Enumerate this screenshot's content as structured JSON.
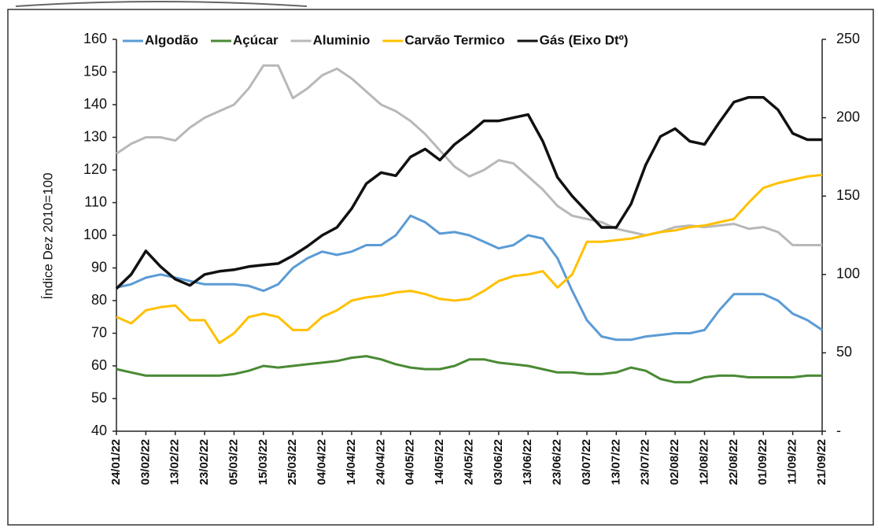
{
  "chart_data": {
    "type": "line",
    "y_label": "Índice Dez 2010=100",
    "categories": [
      "24/01/22",
      null,
      "03/02/22",
      null,
      "13/02/22",
      null,
      "23/02/22",
      null,
      "05/03/22",
      null,
      "15/03/22",
      null,
      "25/03/22",
      null,
      "04/04/22",
      null,
      "14/04/22",
      null,
      "24/04/22",
      null,
      "04/05/22",
      null,
      "14/05/22",
      null,
      "24/05/22",
      null,
      "03/06/22",
      null,
      "13/06/22",
      null,
      "23/06/22",
      null,
      "03/07/22",
      null,
      "13/07/22",
      null,
      "23/07/22",
      null,
      "02/08/22",
      null,
      "12/08/22",
      null,
      "22/08/22",
      null,
      "01/09/22",
      null,
      "11/09/22",
      null,
      "21/09/22"
    ],
    "ylim": [
      40,
      160
    ],
    "yticks": [
      40,
      50,
      60,
      70,
      80,
      90,
      100,
      110,
      120,
      130,
      140,
      150,
      160
    ],
    "y2lim": [
      0,
      250
    ],
    "y2ticks": [
      {
        "value": 0,
        "label": "-"
      },
      50,
      100,
      150,
      200,
      250
    ],
    "series": [
      {
        "name": "Algodão",
        "color": "#5b9bd5",
        "values": [
          84,
          85,
          87,
          88,
          87,
          86,
          85,
          85,
          85,
          84.5,
          83,
          85,
          90,
          93,
          95,
          94,
          95,
          97,
          97,
          100,
          106,
          104,
          100.5,
          101,
          100,
          98,
          96,
          97,
          100,
          99,
          93,
          83,
          74,
          69,
          68,
          68,
          69,
          69.5,
          70,
          70,
          71,
          77,
          82,
          82,
          82,
          80,
          76,
          74,
          71
        ]
      },
      {
        "name": "Açúcar",
        "color": "#4a8a35",
        "values": [
          59,
          58,
          57,
          57,
          57,
          57,
          57,
          57,
          57.5,
          58.5,
          60,
          59.5,
          60,
          60.5,
          61,
          61.5,
          62.5,
          63,
          62,
          60.5,
          59.5,
          59,
          59,
          60,
          62,
          62,
          61,
          60.5,
          60,
          59,
          58,
          58,
          57.5,
          57.5,
          58,
          59.5,
          58.5,
          56,
          55,
          55,
          56.5,
          57,
          57,
          56.5,
          56.5,
          56.5,
          56.5,
          57,
          57
        ]
      },
      {
        "name": "Aluminio",
        "color": "#b8b8b8",
        "values": [
          125,
          128,
          130,
          130,
          129,
          133,
          136,
          138,
          140,
          145,
          152,
          152,
          142,
          145,
          149,
          151,
          148,
          144,
          140,
          138,
          135,
          131,
          126,
          121,
          118,
          120,
          123,
          122,
          118,
          114,
          109,
          106,
          105,
          104,
          102,
          101,
          100,
          101,
          102.5,
          103,
          102.5,
          103,
          103.5,
          102,
          102.5,
          101,
          97,
          97,
          97
        ]
      },
      {
        "name": "Carvão Termico",
        "color": "#ffc000",
        "values": [
          75,
          73,
          77,
          78,
          78.5,
          74,
          74,
          67,
          70,
          75,
          76,
          75,
          71,
          71,
          75,
          77,
          80,
          81,
          81.5,
          82.5,
          83,
          82,
          80.5,
          80,
          80.5,
          83,
          86,
          87.5,
          88,
          89,
          84,
          88,
          98,
          98,
          98.5,
          99,
          100,
          101,
          101.5,
          102.5,
          103,
          104,
          105,
          110,
          114.5,
          116,
          117,
          118,
          118.5
        ]
      },
      {
        "name": "Gás (Eixo Dtº)",
        "color": "#111111",
        "axis": "y2",
        "values": [
          91,
          100,
          115,
          105,
          97,
          93,
          100,
          102,
          103,
          105,
          106,
          107,
          112,
          118,
          125,
          130,
          142,
          158,
          165,
          163,
          175,
          180,
          173,
          183,
          190,
          198,
          198,
          200,
          202,
          185,
          162,
          150,
          140,
          130,
          130,
          145,
          170,
          188,
          193,
          185,
          183,
          197,
          210,
          213,
          213,
          205,
          190,
          186,
          186
        ]
      }
    ]
  }
}
